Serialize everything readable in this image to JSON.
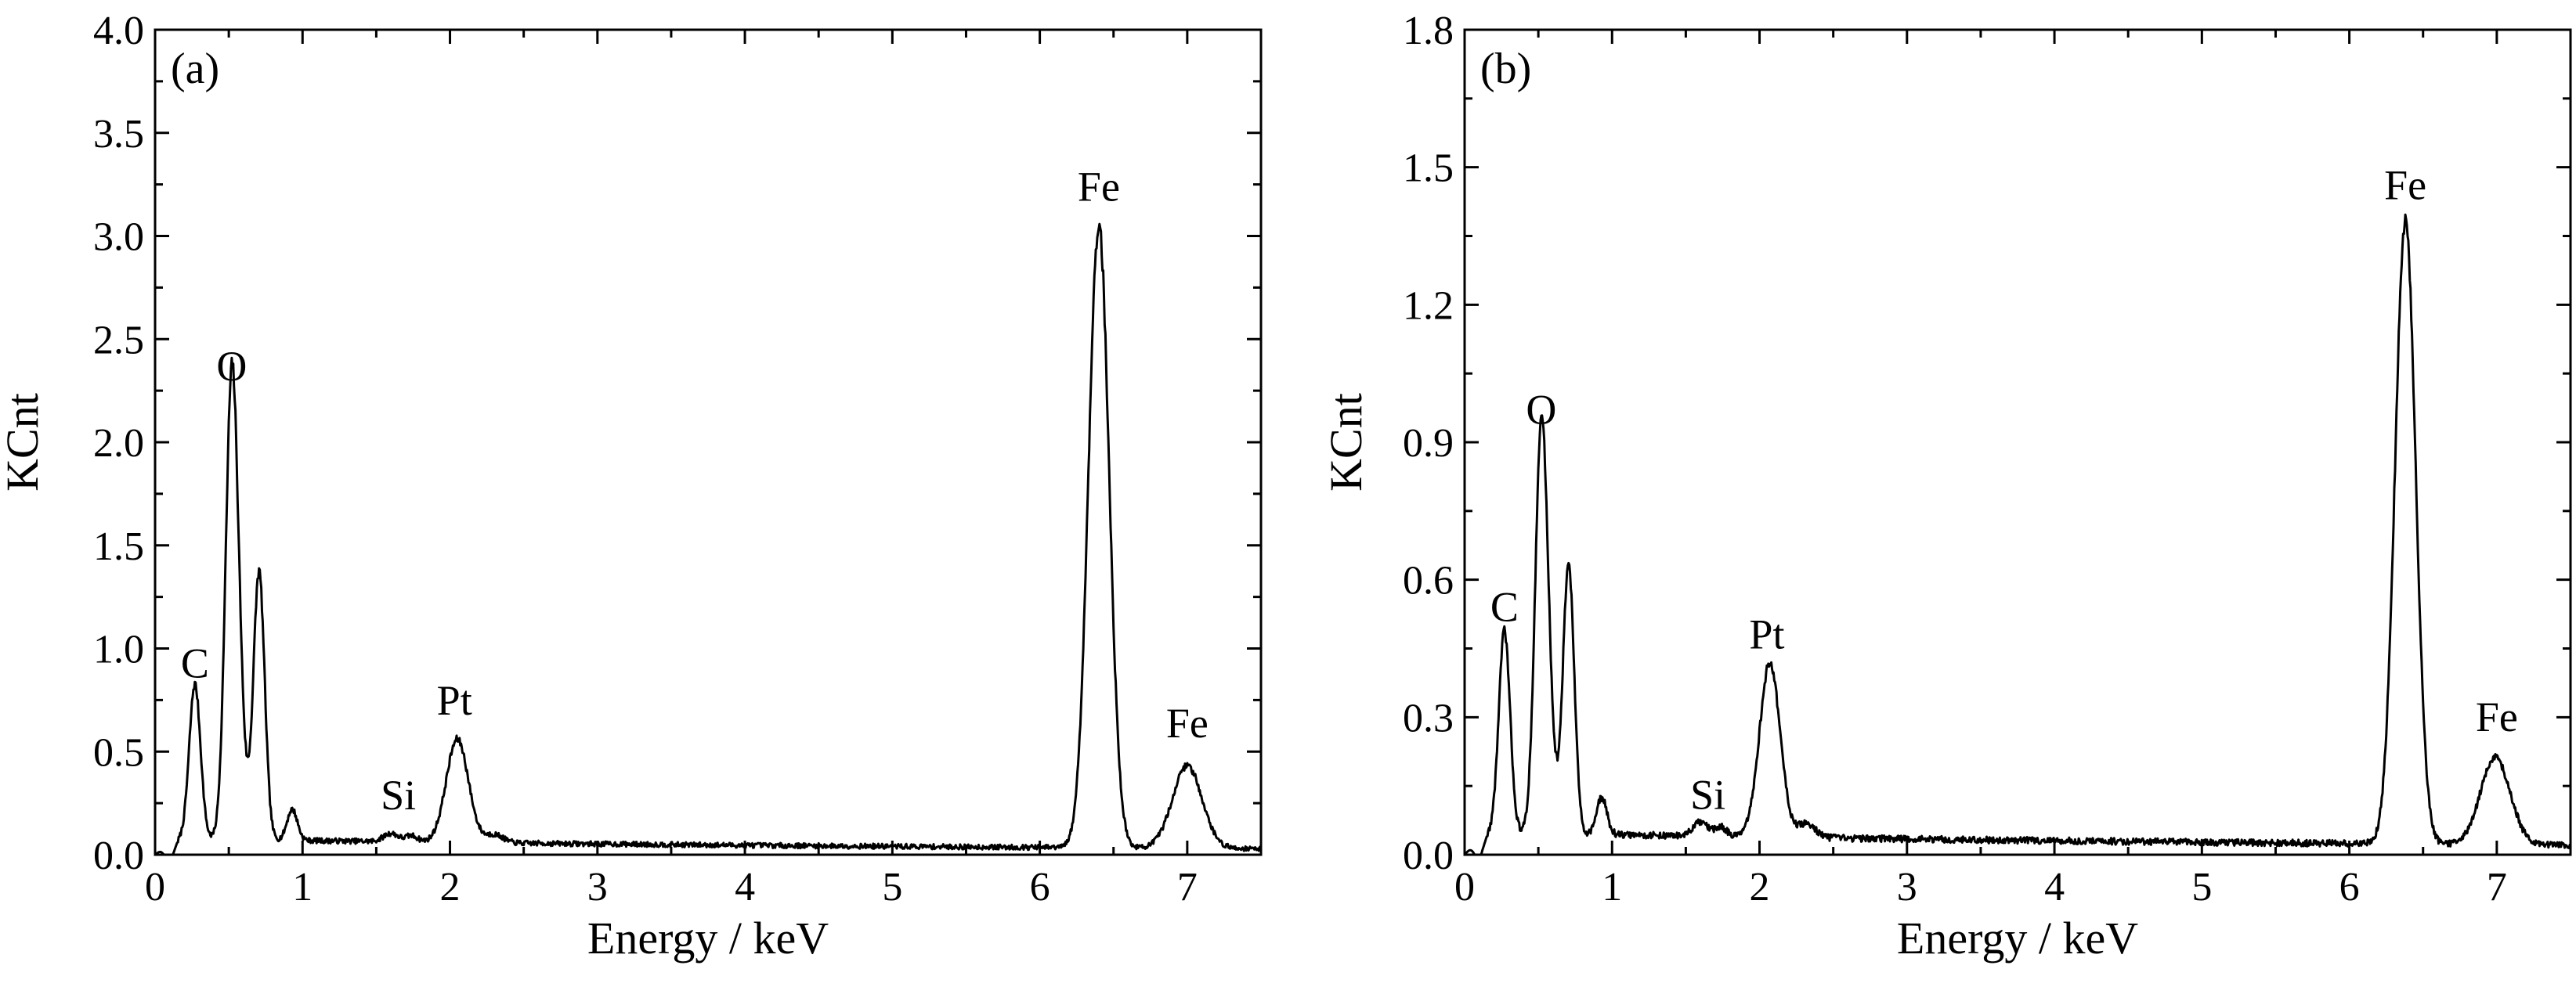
{
  "colors": {
    "background": "#ffffff",
    "line": "#000000"
  },
  "chart_data": [
    {
      "type": "line",
      "panel_label": "(a)",
      "xlabel": "Energy / keV",
      "ylabel": "KCnt",
      "xlim": [
        0,
        7.5
      ],
      "ylim": [
        0,
        4.0
      ],
      "x_ticks": [
        0,
        1,
        2,
        3,
        4,
        5,
        6,
        7
      ],
      "x_tick_labels": [
        "0",
        "1",
        "2",
        "3",
        "4",
        "5",
        "6",
        "7"
      ],
      "y_ticks": [
        0,
        0.5,
        1.0,
        1.5,
        2.0,
        2.5,
        3.0,
        3.5,
        4.0
      ],
      "y_tick_labels": [
        "0.0",
        "0.5",
        "1.0",
        "1.5",
        "2.0",
        "2.5",
        "3.0",
        "3.5",
        "4.0"
      ],
      "grid": false,
      "legend": "none",
      "background": 0.07,
      "spectrum_peaks": [
        {
          "center": 0.1,
          "height": -0.1,
          "width": 0.03
        },
        {
          "center": 0.27,
          "height": 0.75,
          "width": 0.038
        },
        {
          "center": 0.52,
          "height": 2.2,
          "width": 0.042
        },
        {
          "center": 0.58,
          "height": 0.3,
          "width": 0.04
        },
        {
          "center": 0.705,
          "height": 1.3,
          "width": 0.038
        },
        {
          "center": 0.93,
          "height": 0.15,
          "width": 0.035
        },
        {
          "center": 1.6,
          "height": 0.04,
          "width": 0.05
        },
        {
          "center": 1.74,
          "height": 0.03,
          "width": 0.04
        },
        {
          "center": 2.05,
          "height": 0.5,
          "width": 0.075
        },
        {
          "center": 2.3,
          "height": 0.04,
          "width": 0.06
        },
        {
          "center": 6.4,
          "height": 3.02,
          "width": 0.07
        },
        {
          "center": 7.0,
          "height": 0.4,
          "width": 0.1
        }
      ],
      "noise": 0.012,
      "annotations": [
        {
          "text": "C",
          "x": 0.27,
          "y": 0.86
        },
        {
          "text": "O",
          "x": 0.52,
          "y": 2.3
        },
        {
          "text": "Si",
          "x": 1.65,
          "y": 0.22
        },
        {
          "text": "Pt",
          "x": 2.03,
          "y": 0.68
        },
        {
          "text": "Fe",
          "x": 6.4,
          "y": 3.17
        },
        {
          "text": "Fe",
          "x": 7.0,
          "y": 0.57
        }
      ]
    },
    {
      "type": "line",
      "panel_label": "(b)",
      "xlabel": "Energy / keV",
      "ylabel": "KCnt",
      "xlim": [
        0,
        7.5
      ],
      "ylim": [
        0,
        1.8
      ],
      "x_ticks": [
        0,
        1,
        2,
        3,
        4,
        5,
        6,
        7
      ],
      "x_tick_labels": [
        "0",
        "1",
        "2",
        "3",
        "4",
        "5",
        "6",
        "7"
      ],
      "y_ticks": [
        0,
        0.3,
        0.6,
        0.9,
        1.2,
        1.5,
        1.8
      ],
      "y_tick_labels": [
        "0.0",
        "0.3",
        "0.6",
        "0.9",
        "1.2",
        "1.5",
        "1.8"
      ],
      "grid": false,
      "legend": "none",
      "background": 0.04,
      "spectrum_peaks": [
        {
          "center": 0.1,
          "height": -0.05,
          "width": 0.03
        },
        {
          "center": 0.27,
          "height": 0.44,
          "width": 0.038
        },
        {
          "center": 0.52,
          "height": 0.87,
          "width": 0.042
        },
        {
          "center": 0.58,
          "height": 0.12,
          "width": 0.04
        },
        {
          "center": 0.705,
          "height": 0.59,
          "width": 0.038
        },
        {
          "center": 0.93,
          "height": 0.08,
          "width": 0.035
        },
        {
          "center": 1.6,
          "height": 0.03,
          "width": 0.05
        },
        {
          "center": 1.74,
          "height": 0.02,
          "width": 0.04
        },
        {
          "center": 2.07,
          "height": 0.38,
          "width": 0.07
        },
        {
          "center": 2.32,
          "height": 0.03,
          "width": 0.06
        },
        {
          "center": 6.38,
          "height": 1.36,
          "width": 0.07
        },
        {
          "center": 6.99,
          "height": 0.19,
          "width": 0.1
        }
      ],
      "noise": 0.007,
      "annotations": [
        {
          "text": "C",
          "x": 0.27,
          "y": 0.51
        },
        {
          "text": "O",
          "x": 0.52,
          "y": 0.94
        },
        {
          "text": "Si",
          "x": 1.65,
          "y": 0.1
        },
        {
          "text": "Pt",
          "x": 2.05,
          "y": 0.45
        },
        {
          "text": "Fe",
          "x": 6.38,
          "y": 1.43
        },
        {
          "text": "Fe",
          "x": 7.0,
          "y": 0.27
        }
      ]
    }
  ]
}
